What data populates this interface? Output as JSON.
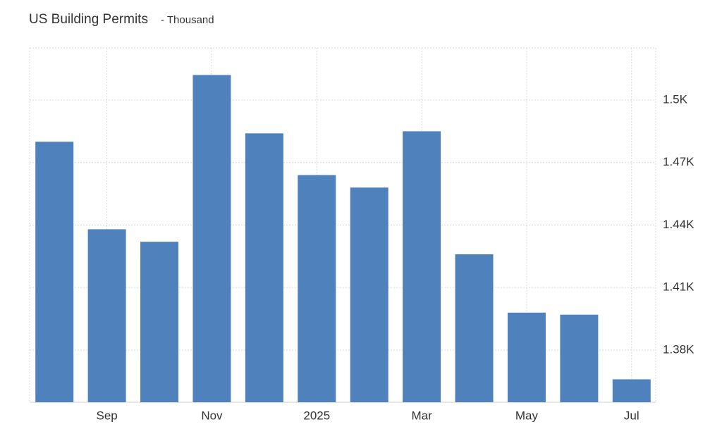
{
  "chart_data": {
    "type": "bar",
    "title": "US Building Permits",
    "subtitle": "- Thousand",
    "categories": [
      null,
      "Sep",
      null,
      "Nov",
      null,
      "2025",
      null,
      "Mar",
      null,
      "May",
      null,
      "Jul"
    ],
    "values": [
      1480,
      1438,
      1432,
      1512,
      1484,
      1464,
      1458,
      1485,
      1426,
      1398,
      1397,
      1366
    ],
    "color": "#4f81bd",
    "ylim": [
      1355,
      1525
    ],
    "yticks": [
      {
        "value": 1380,
        "label": "1.38K"
      },
      {
        "value": 1410,
        "label": "1.41K"
      },
      {
        "value": 1440,
        "label": "1.44K"
      },
      {
        "value": 1470,
        "label": "1.47K"
      },
      {
        "value": 1500,
        "label": "1.5K"
      }
    ],
    "grid": true
  }
}
